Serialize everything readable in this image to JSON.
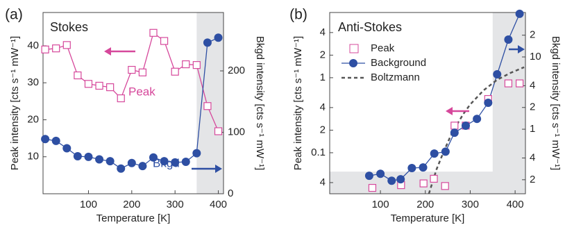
{
  "chart_data": [
    {
      "type": "line",
      "panel_label": "(a)",
      "title": "Stokes",
      "x_label": "Temperature [K]",
      "y_label": "Peak intensity [cts s⁻¹ mW⁻¹]",
      "y2_label": "Bkgd intensity [cts s⁻¹ mW⁻¹]",
      "xlim": [
        -5,
        412
      ],
      "xticks": [
        100,
        200,
        300,
        400
      ],
      "ylim": [
        0,
        49
      ],
      "yticks": [
        10,
        20,
        30,
        40
      ],
      "y2lim": [
        0,
        295
      ],
      "y2ticks": [
        0,
        100,
        200
      ],
      "shade_x_from": 350,
      "legend": false,
      "series": [
        {
          "name": "Peak",
          "color": "#d6489b",
          "marker": "square",
          "line": true,
          "x": [
            0,
            25,
            50,
            75,
            100,
            125,
            150,
            175,
            200,
            225,
            250,
            275,
            300,
            325,
            350,
            375,
            400
          ],
          "values": [
            39,
            39.3,
            40.2,
            32,
            29.7,
            29.2,
            28.8,
            25.8,
            33.5,
            32.8,
            43.5,
            41.3,
            33,
            35,
            34.8,
            23.7,
            16.9
          ]
        },
        {
          "name": "Bkgd",
          "color": "#2e4fa3",
          "marker": "circle",
          "line": true,
          "axis": "y2",
          "x": [
            0,
            25,
            50,
            75,
            100,
            125,
            150,
            175,
            200,
            225,
            250,
            275,
            300,
            325,
            350,
            375,
            400
          ],
          "values": [
            89,
            86,
            74,
            61,
            60,
            56,
            53,
            41,
            50,
            45,
            59,
            53,
            51,
            52,
            66,
            246,
            254
          ]
        }
      ]
    },
    {
      "type": "line",
      "panel_label": "(b)",
      "title": "Anti-Stokes",
      "x_label": "Temperature [K]",
      "y_label": "Peak intensity [cts s⁻¹ mW⁻¹]",
      "y2_label": "Bkgd intensity [cts s⁻¹ mW⁻¹]",
      "xlim": [
        -13,
        423
      ],
      "xticks": [
        100,
        200,
        300,
        400
      ],
      "yscale": "log",
      "ylim": [
        0.0284,
        7.4
      ],
      "yticks": [
        {
          "value": 0.04,
          "label": "4"
        },
        0.1,
        {
          "value": 0.2,
          "label": "2"
        },
        {
          "value": 0.4,
          "label": "4"
        },
        1,
        2,
        4
      ],
      "y2scale": "log",
      "y2lim": [
        0.128,
        41.2
      ],
      "y2ticks": [
        {
          "value": 0.2,
          "label": "2"
        },
        {
          "value": 0.4,
          "label": "4"
        },
        1,
        2,
        4,
        10,
        {
          "value": 20,
          "label": "2"
        }
      ],
      "shade_x_from": 350,
      "shade_y_below": 0.056,
      "legend": "upper left",
      "series": [
        {
          "name": "Peak",
          "color": "#d6489b",
          "marker": "square",
          "line": false,
          "x": [
            82,
            146,
            196,
            219,
            244,
            265,
            290,
            340,
            385,
            410
          ],
          "values": [
            0.034,
            0.037,
            0.039,
            0.045,
            0.036,
            0.23,
            0.23,
            0.52,
            0.84,
            0.84
          ]
        },
        {
          "name": "Background",
          "color": "#2e4fa3",
          "marker": "circle",
          "line": true,
          "axis": "y2",
          "x": [
            75,
            100,
            125,
            145,
            170,
            195,
            220,
            245,
            265,
            290,
            315,
            340,
            360,
            385,
            410
          ],
          "values": [
            0.227,
            0.242,
            0.194,
            0.203,
            0.29,
            0.296,
            0.46,
            0.49,
            0.895,
            1.12,
            1.39,
            2.32,
            5.75,
            17.4,
            39.5
          ]
        },
        {
          "name": "Boltzmann",
          "color": "#555555",
          "marker": "none",
          "line": "dashed",
          "x": [
            208,
            225,
            240,
            255,
            270,
            285,
            300,
            330,
            360,
            390,
            420
          ],
          "values": [
            0.0284,
            0.06,
            0.1,
            0.16,
            0.235,
            0.33,
            0.44,
            0.68,
            0.94,
            1.16,
            1.38
          ]
        }
      ]
    }
  ]
}
